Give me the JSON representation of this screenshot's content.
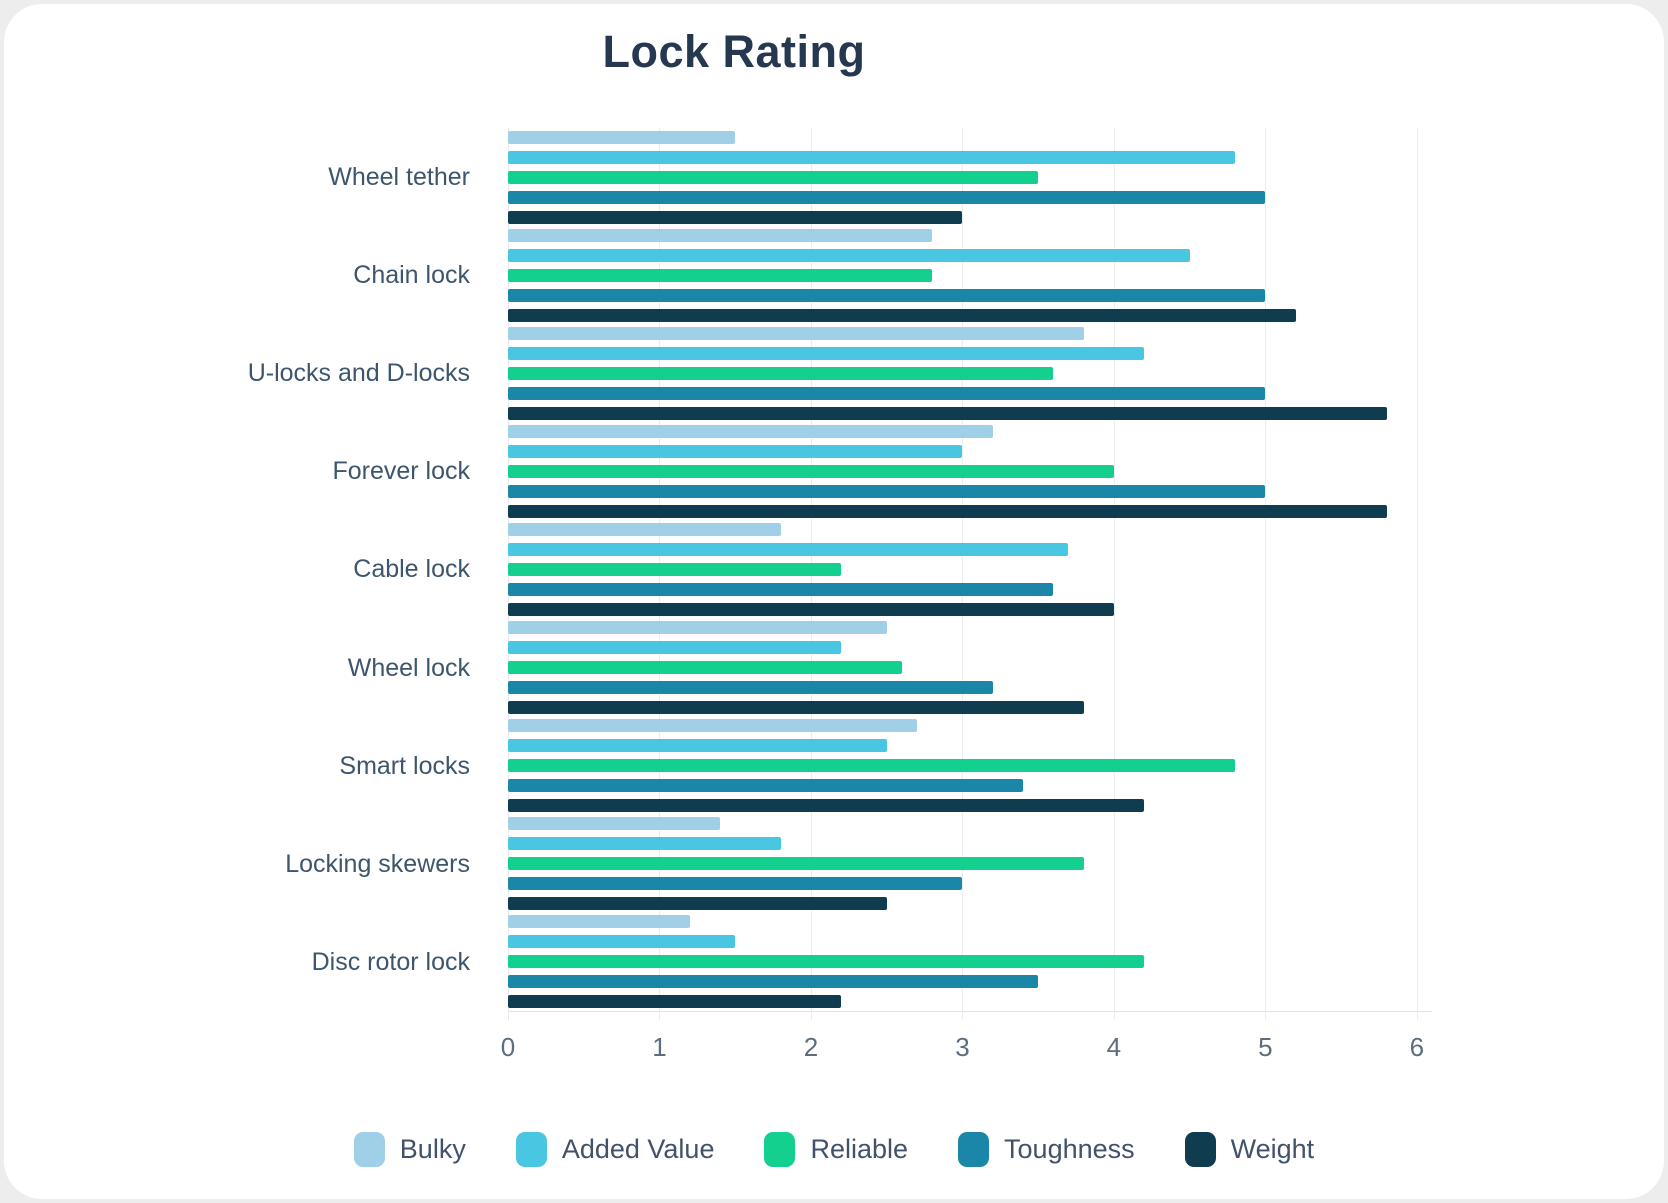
{
  "title": "Lock Rating",
  "chart_data": {
    "type": "bar",
    "orientation": "horizontal",
    "title": "Lock Rating",
    "xlabel": "",
    "ylabel": "",
    "categories": [
      "Wheel tether",
      "Chain lock",
      "U-locks and D-locks",
      "Forever lock",
      "Cable lock",
      "Wheel lock",
      "Smart locks",
      "Locking skewers",
      "Disc rotor lock"
    ],
    "series": [
      {
        "name": "Bulky",
        "color": "#9fd0e8",
        "values": [
          1.5,
          2.8,
          3.8,
          3.2,
          1.8,
          2.5,
          2.7,
          1.4,
          1.2
        ]
      },
      {
        "name": "Added Value",
        "color": "#49c7e2",
        "values": [
          4.8,
          4.5,
          4.2,
          3.0,
          3.7,
          2.2,
          2.5,
          1.8,
          1.5
        ]
      },
      {
        "name": "Reliable",
        "color": "#13d08e",
        "values": [
          3.5,
          2.8,
          3.6,
          4.0,
          2.2,
          2.6,
          4.8,
          3.8,
          4.2
        ]
      },
      {
        "name": "Toughness",
        "color": "#1a87a8",
        "values": [
          5.0,
          5.0,
          5.0,
          5.0,
          3.6,
          3.2,
          3.4,
          3.0,
          3.5
        ]
      },
      {
        "name": "Weight",
        "color": "#103c50",
        "values": [
          3.0,
          5.2,
          5.8,
          5.8,
          4.0,
          3.8,
          4.2,
          2.5,
          2.2
        ]
      }
    ],
    "x_ticks": [
      "0",
      "1",
      "2",
      "3",
      "4",
      "5",
      "6"
    ],
    "xlim": [
      0,
      6.1
    ],
    "grid": "vertical",
    "legend_position": "bottom",
    "colors": {
      "title_text": "#263750",
      "category_text": "#3d566d",
      "tick_text": "#5d6d7c",
      "gridline": "#e9eef2",
      "background": "#ffffff"
    }
  }
}
